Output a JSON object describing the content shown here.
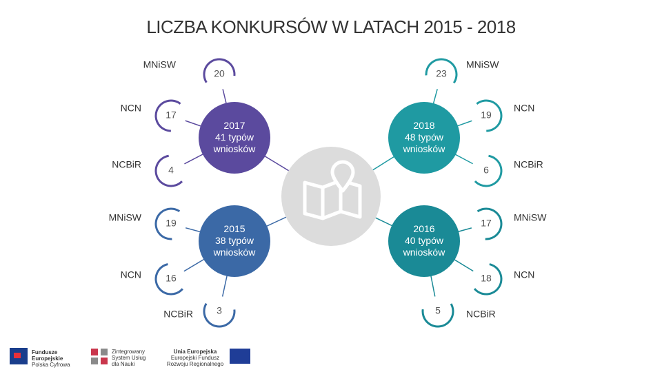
{
  "title": "LICZBA KONKURSÓW W LATACH 2015 - 2018",
  "groups": [
    {
      "year": "2017",
      "total": "41 typów wniosków",
      "items": [
        {
          "label": "MNiSW",
          "value": 20
        },
        {
          "label": "NCN",
          "value": 17
        },
        {
          "label": "NCBiR",
          "value": 4
        }
      ]
    },
    {
      "year": "2018",
      "total": "48 typów wniosków",
      "items": [
        {
          "label": "MNiSW",
          "value": 23
        },
        {
          "label": "NCN",
          "value": 19
        },
        {
          "label": "NCBiR",
          "value": 6
        }
      ]
    },
    {
      "year": "2015",
      "total": "38 typów wniosków",
      "items": [
        {
          "label": "MNiSW",
          "value": 19
        },
        {
          "label": "NCN",
          "value": 16
        },
        {
          "label": "NCBiR",
          "value": 3
        }
      ]
    },
    {
      "year": "2016",
      "total": "40 typów wniosków",
      "items": [
        {
          "label": "MNiSW",
          "value": 17
        },
        {
          "label": "NCN",
          "value": 18
        },
        {
          "label": "NCBiR",
          "value": 5
        }
      ]
    }
  ],
  "logos": [
    "Fundusze Europejskie",
    "Polska Cyfrowa",
    "Zintegrowany System Usług dla Nauki",
    "Unia Europejska",
    "Europejski Fundusz Rozwoju Regionalnego"
  ]
}
